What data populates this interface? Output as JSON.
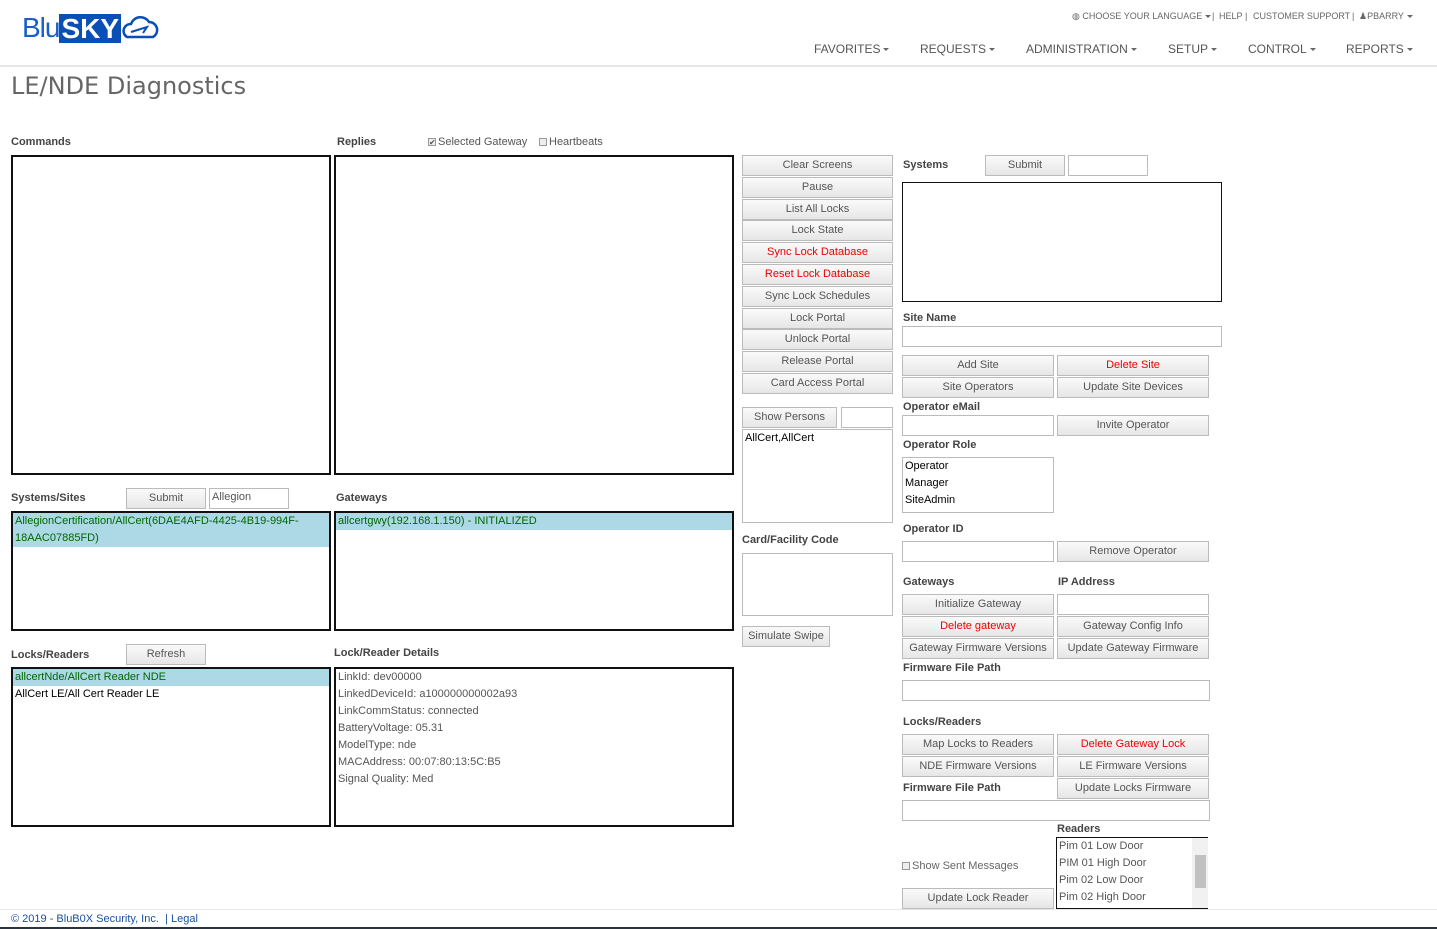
{
  "header": {
    "logo": "BluSKY",
    "top_links": [
      "CHOOSE YOUR LANGUAGE",
      "HELP",
      "CUSTOMER SUPPORT",
      "PBARRY"
    ],
    "nav": [
      "FAVORITES",
      "REQUESTS",
      "ADMINISTRATION",
      "SETUP",
      "CONTROL",
      "REPORTS"
    ]
  },
  "page_title": "LE/NDE Diagnostics",
  "commands": {
    "label": "Commands"
  },
  "replies": {
    "label": "Replies",
    "selected_gateway": "Selected Gateway",
    "selected_gateway_checked": true,
    "heartbeats": "Heartbeats",
    "heartbeats_checked": false
  },
  "command_buttons": [
    {
      "label": "Clear Screens",
      "danger": false
    },
    {
      "label": "Pause",
      "danger": false
    },
    {
      "label": "List All Locks",
      "danger": false
    },
    {
      "label": "Lock State",
      "danger": false
    },
    {
      "label": "Sync Lock Database",
      "danger": true
    },
    {
      "label": "Reset Lock Database",
      "danger": true
    },
    {
      "label": "Sync Lock Schedules",
      "danger": false
    },
    {
      "label": "Lock Portal",
      "danger": false
    },
    {
      "label": "Unlock Portal",
      "danger": false
    },
    {
      "label": "Release Portal",
      "danger": false
    },
    {
      "label": "Card Access Portal",
      "danger": false
    }
  ],
  "show_persons": {
    "label": "Show Persons",
    "input": "",
    "items": [
      "AllCert,AllCert"
    ]
  },
  "card_facility": {
    "label": "Card/Facility Code",
    "value": "",
    "simulate": "Simulate Swipe"
  },
  "systems_sites": {
    "label": "Systems/Sites",
    "submit": "Submit",
    "filter": "Allegion",
    "items": [
      "AllegionCertification/AllCert(6DAE4AFD-4425-4B19-994F-18AAC07885FD)"
    ]
  },
  "gateways": {
    "label": "Gateways",
    "items": [
      "allcertgwy(192.168.1.150) - INITIALIZED"
    ]
  },
  "locks_readers": {
    "label": "Locks/Readers",
    "refresh": "Refresh",
    "items": [
      "allcertNde/AllCert Reader NDE",
      "AllCert LE/All Cert Reader LE"
    ]
  },
  "lock_details": {
    "label": "Lock/Reader Details",
    "lines": [
      "LinkId: dev00000",
      "LinkedDeviceId: a100000000002a93",
      "LinkCommStatus: connected",
      "BatteryVoltage: 05.31",
      "ModelType: nde",
      "MACAddress: 00:07:80:13:5C:B5",
      "Signal Quality: Med"
    ]
  },
  "right": {
    "systems_label": "Systems",
    "submit": "Submit",
    "systems_input": "",
    "site_name_label": "Site Name",
    "site_name": "",
    "add_site": "Add Site",
    "delete_site": "Delete Site",
    "site_operators": "Site Operators",
    "update_site_devices": "Update Site Devices",
    "operator_email_label": "Operator eMail",
    "operator_email": "",
    "invite_operator": "Invite Operator",
    "operator_role_label": "Operator Role",
    "roles": [
      "Operator",
      "Manager",
      "SiteAdmin"
    ],
    "operator_id_label": "Operator ID",
    "operator_id": "",
    "remove_operator": "Remove Operator",
    "gateways_label": "Gateways",
    "ip_label": "IP Address",
    "ip": "",
    "initialize_gateway": "Initialize Gateway",
    "delete_gateway": "Delete gateway",
    "gateway_config": "Gateway Config Info",
    "gateway_fw_versions": "Gateway Firmware Versions",
    "update_gateway_fw": "Update Gateway Firmware",
    "fw_path_label": "Firmware File Path",
    "fw_path": "",
    "locks_label": "Locks/Readers",
    "map_locks": "Map Locks to Readers",
    "delete_gateway_lock": "Delete Gateway Lock",
    "nde_fw": "NDE Firmware Versions",
    "le_fw": "LE Firmware Versions",
    "fw_path2_label": "Firmware File Path",
    "fw_path2": "",
    "update_locks_fw": "Update Locks Firmware",
    "readers_label": "Readers",
    "readers": [
      "Pim 01 Low Door",
      "PIM 01 High Door",
      "Pim 02 Low Door",
      "Pim 02 High Door"
    ],
    "show_sent": "Show Sent Messages",
    "show_sent_checked": false,
    "update_lock_reader": "Update Lock Reader"
  },
  "footer": {
    "copyright": "© 2019 - BluB0X Security, Inc.",
    "legal": "Legal"
  },
  "colors": {
    "brand": "#0a4fb5",
    "danger": "#ee0000",
    "highlight": "#add8e6"
  }
}
